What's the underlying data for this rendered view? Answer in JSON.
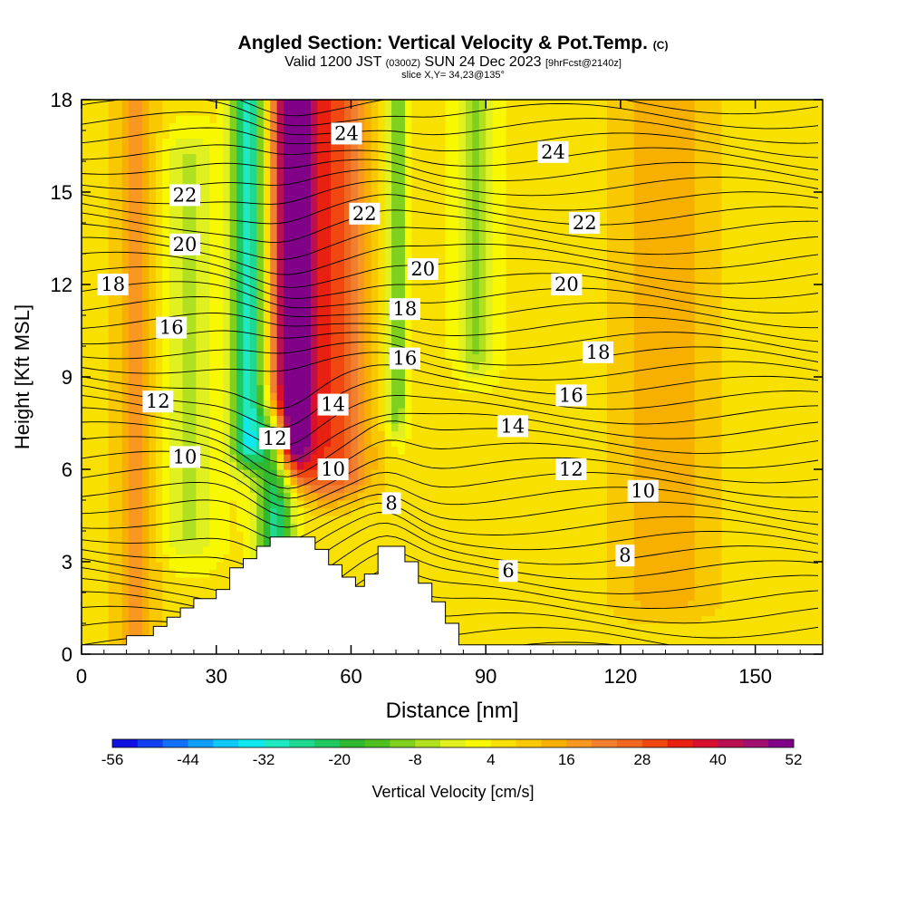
{
  "header": {
    "title_main": "Angled Section: Vertical Velocity & Pot.Temp.",
    "title_units": "(C)",
    "valid_prefix": "Valid 1200 JST",
    "valid_utc": "(0300Z)",
    "valid_date": "SUN 24 Dec 2023",
    "forecast": "[9hrFcst@2140z]",
    "slice": "slice X,Y= 34,23@135°"
  },
  "chart_data": {
    "type": "heatmap",
    "xlabel": "Distance [nm]",
    "ylabel": "Height [Kft MSL]",
    "xlim": [
      0,
      165
    ],
    "ylim": [
      0,
      18
    ],
    "x_ticks": [
      0,
      30,
      60,
      90,
      120,
      150
    ],
    "y_ticks": [
      0,
      3,
      6,
      9,
      12,
      15,
      18
    ],
    "grid": false,
    "colorbar": {
      "label": "Vertical Velocity [cm/s]",
      "tick_labels": [
        "-56",
        "-44",
        "-32",
        "-20",
        "-8",
        "4",
        "16",
        "28",
        "40",
        "52"
      ],
      "levels": [
        -56,
        -52,
        -48,
        -44,
        -40,
        -36,
        -32,
        -28,
        -24,
        -20,
        -16,
        -12,
        -8,
        -4,
        0,
        4,
        8,
        12,
        16,
        20,
        24,
        28,
        32,
        36,
        40,
        44,
        48,
        52
      ],
      "colors": [
        "#1010e0",
        "#1040f0",
        "#1070f8",
        "#10a0f8",
        "#10c8f8",
        "#10e8f0",
        "#20e8c0",
        "#20d890",
        "#20c860",
        "#30b830",
        "#50c020",
        "#80d020",
        "#b0e020",
        "#e0f020",
        "#f8f800",
        "#f8e000",
        "#f8c800",
        "#f8b000",
        "#f89820",
        "#f08030",
        "#f06820",
        "#f04810",
        "#e82010",
        "#d81030",
        "#b81050",
        "#a01070",
        "#800088"
      ],
      "position": "bottom"
    },
    "vertical_velocity_features": [
      {
        "x_center": 47,
        "halfwidth": 4,
        "y_range": [
          7,
          18
        ],
        "w": 50
      },
      {
        "x_center": 55,
        "halfwidth": 9,
        "y_range": [
          6,
          18
        ],
        "w": 26
      },
      {
        "x_center": 37,
        "halfwidth": 3.5,
        "y_range": [
          7,
          18
        ],
        "w": -36
      },
      {
        "x_center": 43,
        "halfwidth": 4,
        "y_range": [
          3.5,
          7
        ],
        "w": -30
      },
      {
        "x_center": 70,
        "halfwidth": 2.5,
        "y_range": [
          8,
          18
        ],
        "w": -18
      },
      {
        "x_center": 88,
        "halfwidth": 4,
        "y_range": [
          10,
          18
        ],
        "w": -14
      },
      {
        "x_center": 24,
        "halfwidth": 6,
        "y_range": [
          4,
          16
        ],
        "w": -10
      },
      {
        "x_center": 12,
        "halfwidth": 5,
        "y_range": [
          0,
          18
        ],
        "w": 12
      },
      {
        "x_center": 130,
        "halfwidth": 12,
        "y_range": [
          2,
          18
        ],
        "w": 10
      }
    ],
    "terrain_steps": [
      {
        "x": 0,
        "top": 0.3
      },
      {
        "x": 10,
        "top": 0.6
      },
      {
        "x": 16,
        "top": 0.9
      },
      {
        "x": 19,
        "top": 1.2
      },
      {
        "x": 22,
        "top": 1.5
      },
      {
        "x": 25,
        "top": 1.8
      },
      {
        "x": 30,
        "top": 2.1
      },
      {
        "x": 33,
        "top": 2.8
      },
      {
        "x": 36,
        "top": 3.1
      },
      {
        "x": 39,
        "top": 3.5
      },
      {
        "x": 42,
        "top": 3.8
      },
      {
        "x": 52,
        "top": 3.4
      },
      {
        "x": 55,
        "top": 2.9
      },
      {
        "x": 58,
        "top": 2.5
      },
      {
        "x": 61,
        "top": 2.2
      },
      {
        "x": 63,
        "top": 2.6
      },
      {
        "x": 66,
        "top": 3.5
      },
      {
        "x": 72,
        "top": 3.0
      },
      {
        "x": 75,
        "top": 2.3
      },
      {
        "x": 78,
        "top": 1.7
      },
      {
        "x": 81,
        "top": 1.0
      },
      {
        "x": 84,
        "top": 0.3
      },
      {
        "x": 165,
        "top": 0.3
      }
    ],
    "contour_labels": [
      {
        "text": "24",
        "x": 59,
        "y": 16.9
      },
      {
        "text": "24",
        "x": 105,
        "y": 16.3
      },
      {
        "text": "22",
        "x": 23,
        "y": 14.9
      },
      {
        "text": "22",
        "x": 63,
        "y": 14.3
      },
      {
        "text": "22",
        "x": 112,
        "y": 14.0
      },
      {
        "text": "20",
        "x": 23,
        "y": 13.3
      },
      {
        "text": "20",
        "x": 76,
        "y": 12.5
      },
      {
        "text": "20",
        "x": 108,
        "y": 12.0
      },
      {
        "text": "18",
        "x": 7,
        "y": 12.0
      },
      {
        "text": "18",
        "x": 72,
        "y": 11.2
      },
      {
        "text": "18",
        "x": 115,
        "y": 9.8
      },
      {
        "text": "16",
        "x": 20,
        "y": 10.6
      },
      {
        "text": "16",
        "x": 72,
        "y": 9.6
      },
      {
        "text": "16",
        "x": 109,
        "y": 8.4
      },
      {
        "text": "14",
        "x": 56,
        "y": 8.1
      },
      {
        "text": "14",
        "x": 96,
        "y": 7.4
      },
      {
        "text": "12",
        "x": 17,
        "y": 8.2
      },
      {
        "text": "12",
        "x": 43,
        "y": 7.0
      },
      {
        "text": "12",
        "x": 109,
        "y": 6.0
      },
      {
        "text": "10",
        "x": 23,
        "y": 6.4
      },
      {
        "text": "10",
        "x": 56,
        "y": 6.0
      },
      {
        "text": "10",
        "x": 125,
        "y": 5.3
      },
      {
        "text": "8",
        "x": 69,
        "y": 4.9
      },
      {
        "text": "8",
        "x": 121,
        "y": 3.2
      },
      {
        "text": "6",
        "x": 95,
        "y": 2.7
      }
    ]
  }
}
